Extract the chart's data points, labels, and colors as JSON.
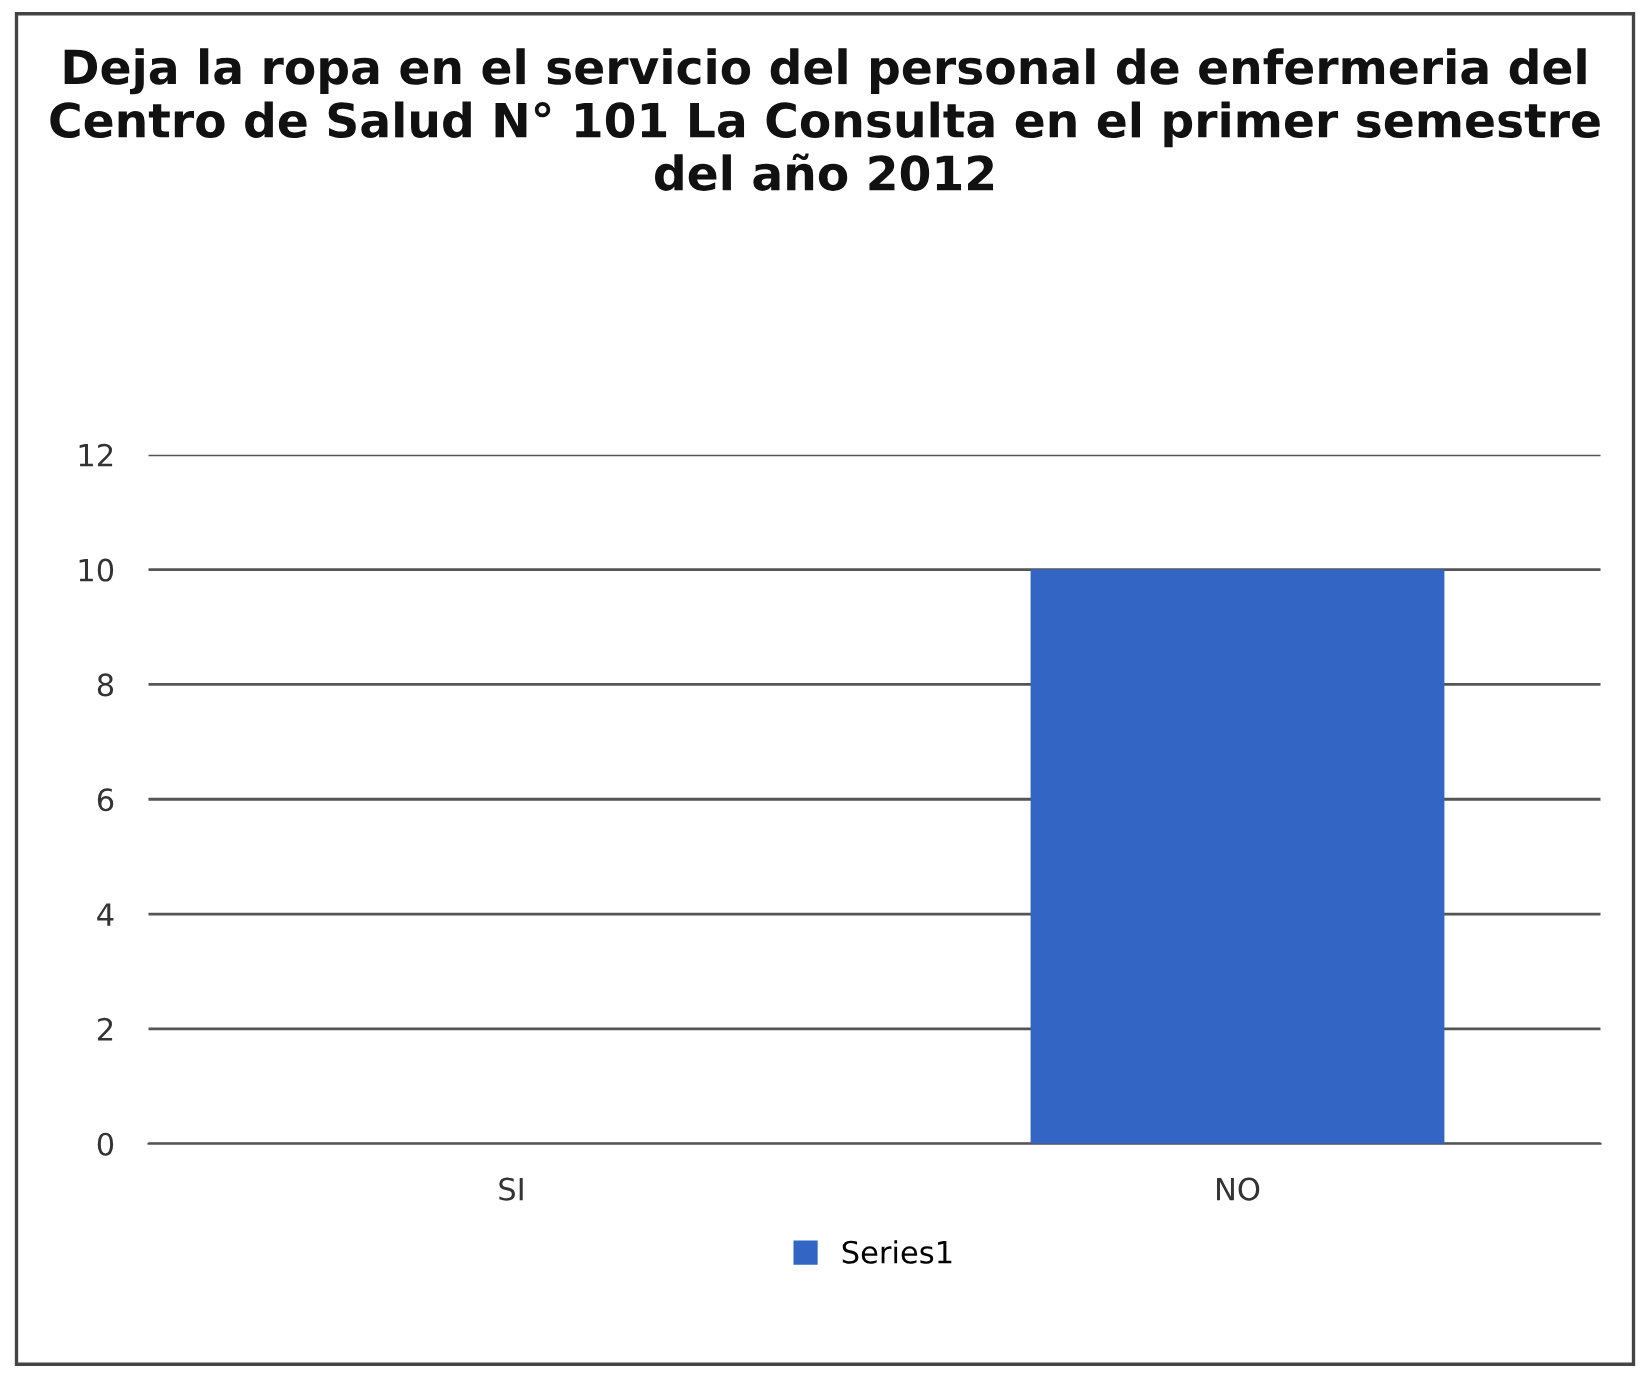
{
  "chart_data": {
    "type": "bar",
    "title": "Deja la ropa en el servicio del personal de enfermeria del Centro de Salud N° 101 La Consulta en el primer semestre del año 2012",
    "categories": [
      "SI",
      "NO"
    ],
    "series": [
      {
        "name": "Series1",
        "color": "#3366c4",
        "values": [
          0,
          10
        ]
      }
    ],
    "ylim": [
      0,
      12
    ],
    "yticks": [
      0,
      2,
      4,
      6,
      8,
      10,
      12
    ],
    "grid": "y",
    "legend": "bottom"
  }
}
